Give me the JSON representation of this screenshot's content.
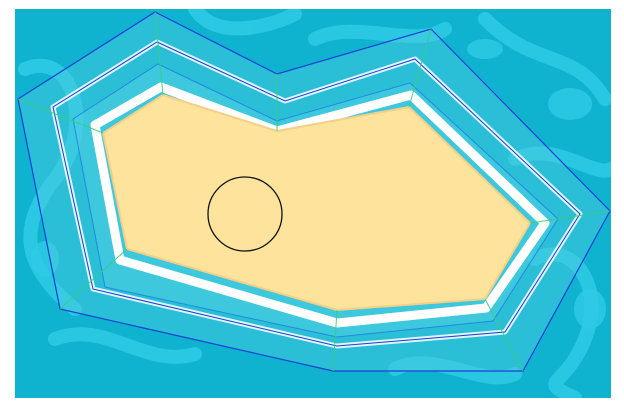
{
  "scene": {
    "colors": {
      "water": "#0fb3cf",
      "water_caustic": "#2fcbe6",
      "water_dark": "#0a9fc0",
      "foam": "#ffffff",
      "shallow": "#7fe0ec",
      "sand": "#fde39c",
      "sand_edge": "#f5cf86",
      "wire_outer": "#1a3fd6",
      "wire_inner": "#1f8be0",
      "wire_radial": "#33d17a",
      "cursor_ring": "#111111"
    },
    "elements": {
      "island": "sand-island",
      "brush": "brush-cursor-ring"
    }
  }
}
